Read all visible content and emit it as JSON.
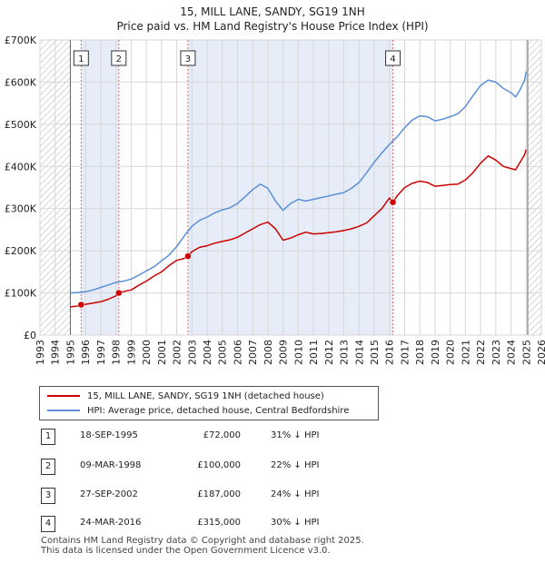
{
  "title_line1": "15, MILL LANE, SANDY, SG19 1NH",
  "title_line2": "Price paid vs. HM Land Registry's House Price Index (HPI)",
  "legend": {
    "property": "15, MILL LANE, SANDY, SG19 1NH (detached house)",
    "hpi": "HPI: Average price, detached house, Central Bedfordshire"
  },
  "colors": {
    "property": "#cc0000",
    "hpi": "#5b8ed6",
    "grid": "#d7d7d7",
    "shade": "#dce6f5",
    "marker_line": "#d07070"
  },
  "sales": [
    {
      "num": "1",
      "date": "18-SEP-1995",
      "price": "£72,000",
      "hpi": "31% ↓ HPI"
    },
    {
      "num": "2",
      "date": "09-MAR-1998",
      "price": "£100,000",
      "hpi": "22% ↓ HPI"
    },
    {
      "num": "3",
      "date": "27-SEP-2002",
      "price": "£187,000",
      "hpi": "24% ↓ HPI"
    },
    {
      "num": "4",
      "date": "24-MAR-2016",
      "price": "£315,000",
      "hpi": "30% ↓ HPI"
    }
  ],
  "footer": {
    "line1": "Contains HM Land Registry data © Copyright and database right 2025.",
    "line2": "This data is licensed under the Open Government Licence v3.0."
  },
  "chart_data": {
    "type": "line",
    "title": "15, MILL LANE, SANDY, SG19 1NH Price paid vs. HM Land Registry's House Price Index (HPI)",
    "xlabel": "",
    "ylabel": "",
    "xlim": [
      1993,
      2026
    ],
    "ylim": [
      0,
      700000
    ],
    "x_ticks": [
      1993,
      1994,
      1995,
      1996,
      1997,
      1998,
      1999,
      2000,
      2001,
      2002,
      2003,
      2004,
      2005,
      2006,
      2007,
      2008,
      2009,
      2010,
      2011,
      2012,
      2013,
      2014,
      2015,
      2016,
      2017,
      2018,
      2019,
      2020,
      2021,
      2022,
      2023,
      2024,
      2025,
      2026
    ],
    "y_ticks": [
      0,
      100000,
      200000,
      300000,
      400000,
      500000,
      600000,
      700000
    ],
    "y_tick_labels": [
      "£0",
      "£100K",
      "£200K",
      "£300K",
      "£400K",
      "£500K",
      "£600K",
      "£700K"
    ],
    "shaded_ranges": [
      [
        1995.71,
        1998.19
      ],
      [
        2002.74,
        2016.23
      ]
    ],
    "hatched_ranges": [
      [
        1993,
        1995.0
      ],
      [
        2025.1,
        2026
      ]
    ],
    "series": [
      {
        "name": "15, MILL LANE, SANDY, SG19 1NH (detached house)",
        "x": [
          1995.0,
          1995.5,
          1995.71,
          1996.0,
          1996.5,
          1997.0,
          1997.5,
          1998.0,
          1998.19,
          1998.6,
          1999.0,
          1999.5,
          2000.0,
          2000.5,
          2001.0,
          2001.5,
          2002.0,
          2002.5,
          2002.74,
          2003.0,
          2003.5,
          2004.0,
          2004.5,
          2005.0,
          2005.5,
          2006.0,
          2006.5,
          2007.0,
          2007.5,
          2008.0,
          2008.5,
          2009.0,
          2009.5,
          2010.0,
          2010.5,
          2011.0,
          2011.5,
          2012.0,
          2012.5,
          2013.0,
          2013.5,
          2014.0,
          2014.5,
          2015.0,
          2015.5,
          2016.0,
          2016.23,
          2016.5,
          2017.0,
          2017.5,
          2018.0,
          2018.5,
          2019.0,
          2019.5,
          2020.0,
          2020.5,
          2021.0,
          2021.5,
          2022.0,
          2022.5,
          2023.0,
          2023.5,
          2024.0,
          2024.3,
          2024.6,
          2024.9,
          2025.0
        ],
        "values": [
          67000,
          69000,
          72000,
          73000,
          76000,
          79000,
          85000,
          93000,
          100000,
          104000,
          107000,
          118000,
          128000,
          140000,
          150000,
          165000,
          177000,
          182000,
          187000,
          198000,
          208000,
          212000,
          218000,
          222000,
          226000,
          232000,
          242000,
          252000,
          262000,
          268000,
          252000,
          225000,
          230000,
          238000,
          244000,
          240000,
          241000,
          243000,
          245000,
          248000,
          252000,
          258000,
          266000,
          283000,
          300000,
          325000,
          315000,
          330000,
          350000,
          360000,
          365000,
          362000,
          353000,
          355000,
          357000,
          358000,
          368000,
          385000,
          408000,
          425000,
          415000,
          400000,
          395000,
          392000,
          410000,
          428000,
          440000
        ]
      },
      {
        "name": "HPI: Average price, detached house, Central Bedfordshire",
        "x": [
          1995.0,
          1995.5,
          1996.0,
          1996.5,
          1997.0,
          1997.5,
          1998.0,
          1998.5,
          1999.0,
          1999.5,
          2000.0,
          2000.5,
          2001.0,
          2001.5,
          2002.0,
          2002.5,
          2003.0,
          2003.5,
          2004.0,
          2004.5,
          2005.0,
          2005.5,
          2006.0,
          2006.5,
          2007.0,
          2007.5,
          2008.0,
          2008.5,
          2009.0,
          2009.5,
          2010.0,
          2010.5,
          2011.0,
          2011.5,
          2012.0,
          2012.5,
          2013.0,
          2013.5,
          2014.0,
          2014.5,
          2015.0,
          2015.5,
          2016.0,
          2016.5,
          2017.0,
          2017.5,
          2018.0,
          2018.5,
          2019.0,
          2019.5,
          2020.0,
          2020.5,
          2021.0,
          2021.5,
          2022.0,
          2022.5,
          2023.0,
          2023.5,
          2024.0,
          2024.3,
          2024.6,
          2024.9,
          2025.0
        ],
        "values": [
          100000,
          101000,
          103000,
          107000,
          113000,
          119000,
          125000,
          128000,
          133000,
          142000,
          152000,
          162000,
          176000,
          190000,
          210000,
          235000,
          258000,
          272000,
          280000,
          290000,
          297000,
          302000,
          312000,
          328000,
          345000,
          358000,
          348000,
          318000,
          296000,
          312000,
          322000,
          318000,
          322000,
          326000,
          330000,
          334000,
          338000,
          348000,
          362000,
          385000,
          410000,
          432000,
          452000,
          470000,
          492000,
          510000,
          520000,
          518000,
          508000,
          512000,
          518000,
          525000,
          542000,
          568000,
          592000,
          605000,
          600000,
          585000,
          575000,
          565000,
          582000,
          605000,
          625000
        ]
      }
    ],
    "sale_markers": [
      {
        "label": "1",
        "x": 1995.71,
        "value": 72000
      },
      {
        "label": "2",
        "x": 1998.19,
        "value": 100000
      },
      {
        "label": "3",
        "x": 2002.74,
        "value": 187000
      },
      {
        "label": "4",
        "x": 2016.23,
        "value": 315000
      }
    ]
  }
}
